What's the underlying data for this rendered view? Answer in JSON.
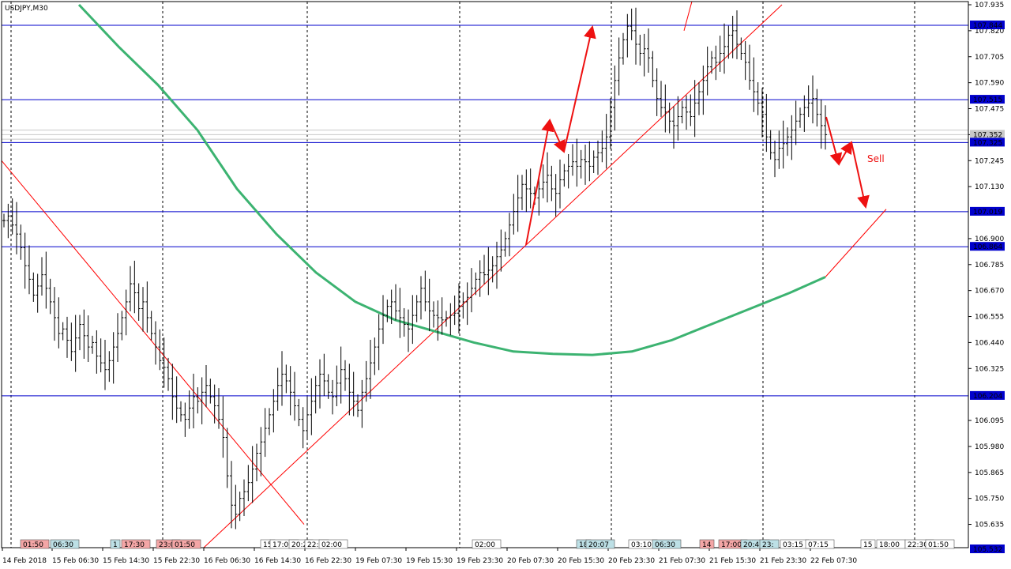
{
  "chart_data": {
    "type": "candlestick",
    "title": "USDJPY,M30",
    "ylim": [
      105.532,
      107.935
    ],
    "y_ticks": [
      107.935,
      107.82,
      107.705,
      107.59,
      107.475,
      107.36,
      107.245,
      107.13,
      106.9,
      106.785,
      106.67,
      106.555,
      106.44,
      106.325,
      106.095,
      105.98,
      105.865,
      105.75,
      105.635
    ],
    "x_labels": [
      "14 Feb 2018",
      "15 Feb 06:30",
      "15 Feb 14:30",
      "15 Feb 22:30",
      "16 Feb 06:30",
      "16 Feb 14:30",
      "16 Feb 22:30",
      "19 Feb 07:30",
      "19 Feb 15:30",
      "19 Feb 23:30",
      "20 Feb 07:30",
      "20 Feb 15:30",
      "20 Feb 23:30",
      "21 Feb 07:30",
      "21 Feb 15:30",
      "21 Feb 23:30",
      "22 Feb 07:30"
    ],
    "grid": true,
    "horizontal_levels": [
      {
        "value": 107.844,
        "label": "107.844"
      },
      {
        "value": 107.515,
        "label": "107.515"
      },
      {
        "value": 107.325,
        "label": "107.325"
      },
      {
        "value": 107.019,
        "label": "107.019"
      },
      {
        "value": 106.864,
        "label": "106.864"
      },
      {
        "value": 106.204,
        "label": "106.204"
      }
    ],
    "gray_levels": [
      107.38,
      107.36,
      107.34
    ],
    "current_price_label": "107.352",
    "bottom_price_label": "105.532",
    "annotation": "Sell",
    "ma_series": {
      "name": "",
      "color": "#3cb371",
      "points": [
        [
          100,
          107.935
        ],
        [
          150,
          107.75
        ],
        [
          200,
          107.58
        ],
        [
          250,
          107.38
        ],
        [
          300,
          107.12
        ],
        [
          350,
          106.92
        ],
        [
          400,
          106.75
        ],
        [
          450,
          106.62
        ],
        [
          500,
          106.54
        ],
        [
          550,
          106.49
        ],
        [
          600,
          106.44
        ],
        [
          650,
          106.4
        ],
        [
          700,
          106.39
        ],
        [
          750,
          106.385
        ],
        [
          800,
          106.4
        ],
        [
          850,
          106.45
        ],
        [
          900,
          106.52
        ],
        [
          950,
          106.59
        ],
        [
          1000,
          106.66
        ],
        [
          1045,
          106.73
        ]
      ]
    },
    "candles_close": [
      106.98,
      107.0,
      106.96,
      106.92,
      106.86,
      106.78,
      106.72,
      106.65,
      106.69,
      106.74,
      106.68,
      106.62,
      106.55,
      106.48,
      106.5,
      106.45,
      106.4,
      106.46,
      106.52,
      106.47,
      106.42,
      106.44,
      106.38,
      106.35,
      106.32,
      106.36,
      106.42,
      106.48,
      106.55,
      106.62,
      106.7,
      106.66,
      106.59,
      106.62,
      106.55,
      106.48,
      106.42,
      106.36,
      106.33,
      106.28,
      106.2,
      106.15,
      106.12,
      106.1,
      106.15,
      106.2,
      106.18,
      106.22,
      106.25,
      106.2,
      106.16,
      106.1,
      106.02,
      105.85,
      105.72,
      105.68,
      105.75,
      105.78,
      105.82,
      105.88,
      105.95,
      106.0,
      106.06,
      106.12,
      106.18,
      106.25,
      106.3,
      106.27,
      106.22,
      106.16,
      106.1,
      106.05,
      106.12,
      106.18,
      106.25,
      106.3,
      106.27,
      106.22,
      106.2,
      106.26,
      106.32,
      106.28,
      106.22,
      106.18,
      106.14,
      106.22,
      106.28,
      106.35,
      106.42,
      106.5,
      106.56,
      106.6,
      106.62,
      106.58,
      106.55,
      106.52,
      106.5,
      106.56,
      106.62,
      106.68,
      106.62,
      106.58,
      106.56,
      106.55,
      106.54,
      106.55,
      106.56,
      106.57,
      106.6,
      106.62,
      106.64,
      106.68,
      106.72,
      106.75,
      106.74,
      106.76,
      106.78,
      106.82,
      106.85,
      106.9,
      106.96,
      107.02,
      107.08,
      107.14,
      107.12,
      107.1,
      107.08,
      107.12,
      107.15,
      107.18,
      107.12,
      107.1,
      107.16,
      107.2,
      107.22,
      107.24,
      107.22,
      107.25,
      107.24,
      107.22,
      107.26,
      107.28,
      107.3,
      107.35,
      107.48,
      107.6,
      107.7,
      107.78,
      107.84,
      107.82,
      107.76,
      107.72,
      107.74,
      107.7,
      107.6,
      107.52,
      107.48,
      107.46,
      107.42,
      107.4,
      107.44,
      107.48,
      107.46,
      107.44,
      107.5,
      107.55,
      107.6,
      107.66,
      107.7,
      107.68,
      107.72,
      107.75,
      107.8,
      107.82,
      107.76,
      107.72,
      107.68,
      107.6,
      107.55,
      107.5,
      107.45,
      107.35,
      107.28,
      107.25,
      107.3,
      107.32,
      107.35,
      107.38,
      107.42,
      107.45,
      107.48,
      107.5,
      107.52,
      107.45,
      107.4,
      107.36
    ]
  },
  "time_tags": [
    {
      "label": "01:50",
      "color": "#f4a6a6"
    },
    {
      "label": "06:30",
      "color": "#bde0e6"
    },
    {
      "label": "1",
      "color": "#bde0e6"
    },
    {
      "label": "17:30",
      "color": "#f4a6a6"
    },
    {
      "label": "23:0",
      "color": "#f4a6a6"
    },
    {
      "label": "01:50",
      "color": "#f4a6a6"
    },
    {
      "label": "15",
      "color": "#ffffff"
    },
    {
      "label": "17:00",
      "color": "#ffffff"
    },
    {
      "label": "20:2",
      "color": "#ffffff"
    },
    {
      "label": "22:3",
      "color": "#ffffff"
    },
    {
      "label": "02:00",
      "color": "#ffffff"
    },
    {
      "label": "02:00",
      "color": "#ffffff"
    },
    {
      "label": "18",
      "color": "#bde0e6"
    },
    {
      "label": "20:07",
      "color": "#bde0e6"
    },
    {
      "label": "03:10",
      "color": "#ffffff"
    },
    {
      "label": "06:30",
      "color": "#bde0e6"
    },
    {
      "label": "14",
      "color": "#f4a6a6"
    },
    {
      "label": "17:00",
      "color": "#f4a6a6"
    },
    {
      "label": "20:45",
      "color": "#bde0e6"
    },
    {
      "label": "23:",
      "color": "#bde0e6"
    },
    {
      "label": "03:15",
      "color": "#ffffff"
    },
    {
      "label": "07:15",
      "color": "#ffffff"
    },
    {
      "label": "15",
      "color": "#ffffff"
    },
    {
      "label": "18:00",
      "color": "#ffffff"
    },
    {
      "label": "22:30",
      "color": "#ffffff"
    },
    {
      "label": "01:50",
      "color": "#ffffff"
    }
  ],
  "colors": {
    "level_line": "#0000cc",
    "level_label_bg": "#0000cc",
    "trend_line": "#ff0000",
    "arrow": "#ee1111",
    "ma": "#3cb371",
    "candle": "#000000",
    "grid": "#000000"
  }
}
